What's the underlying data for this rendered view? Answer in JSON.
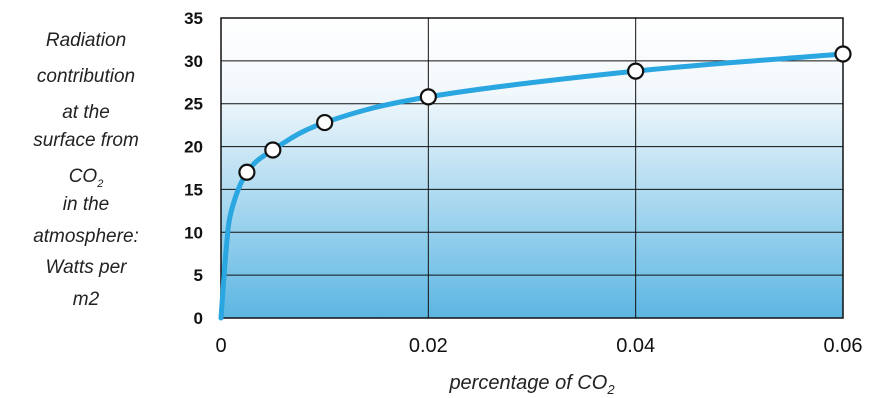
{
  "chart_data": {
    "type": "line",
    "ylabel_lines": [
      "Radiation",
      "contribution",
      "at the",
      "surface from",
      "CO",
      "in the",
      "atmosphere:",
      "Watts per",
      "m2"
    ],
    "ylabel_subscript": "2",
    "xlabel": "percentage of CO",
    "xlabel_subscript": "2",
    "xlim": [
      0,
      0.06
    ],
    "ylim": [
      0,
      35
    ],
    "x_ticks": [
      0,
      0.02,
      0.04,
      0.06
    ],
    "x_tick_labels": [
      "0",
      "0.02",
      "0.04",
      "0.06"
    ],
    "y_ticks": [
      0,
      5,
      10,
      15,
      20,
      25,
      30,
      35
    ],
    "y_tick_labels": [
      "0",
      "5",
      "10",
      "15",
      "20",
      "25",
      "30",
      "35"
    ],
    "grid": true,
    "series": [
      {
        "values_x": [
          0.0025,
          0.005,
          0.01,
          0.02,
          0.04,
          0.06
        ],
        "values_y": [
          17,
          19.6,
          22.8,
          25.8,
          28.8,
          30.8
        ]
      }
    ],
    "curve": {
      "x": [
        0,
        0.0005,
        0.001,
        0.0025,
        0.005,
        0.01,
        0.02,
        0.04,
        0.06
      ],
      "y": [
        0,
        8,
        12.5,
        17,
        19.6,
        22.8,
        25.8,
        28.8,
        30.8
      ]
    },
    "colors": {
      "curve": "#2aa6e0",
      "fill_top": "#ffffff",
      "fill_bottom": "#5cb6e2",
      "grid": "#111111",
      "marker_fill": "#ffffff",
      "marker_stroke": "#111111"
    }
  }
}
